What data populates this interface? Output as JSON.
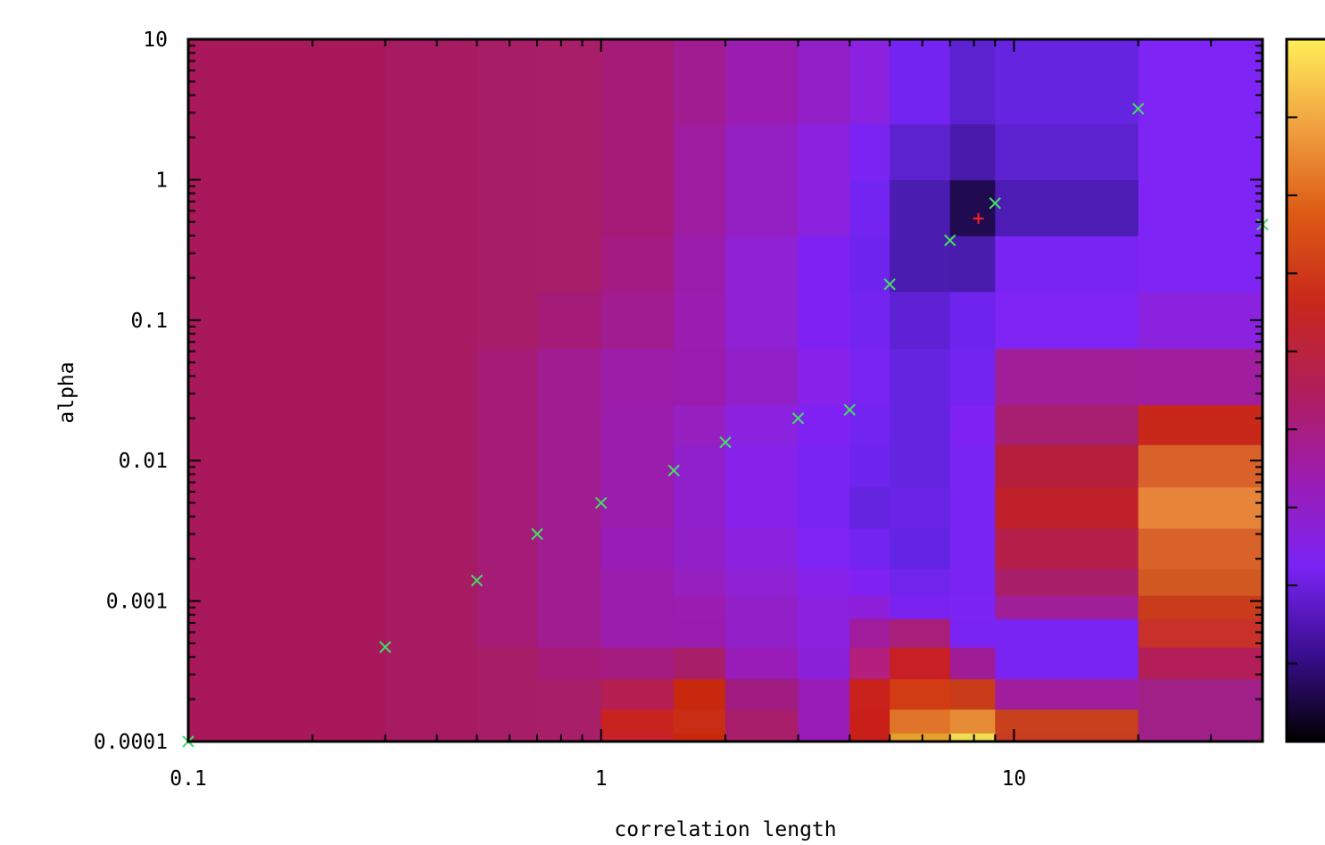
{
  "chart_data": {
    "type": "heatmap",
    "title": "",
    "xlabel": "correlation length",
    "ylabel": "alpha",
    "x_scale": "log",
    "y_scale": "log",
    "xlim": [
      0.1,
      40
    ],
    "ylim": [
      0.0001,
      10
    ],
    "x_tick_labels": [
      {
        "value": 0.1,
        "label": "0.1"
      },
      {
        "value": 1,
        "label": "1"
      },
      {
        "value": 10,
        "label": "10"
      }
    ],
    "y_tick_labels": [
      {
        "value": 10,
        "label": "10"
      },
      {
        "value": 1,
        "label": "1"
      },
      {
        "value": 0.1,
        "label": "0.1"
      },
      {
        "value": 0.01,
        "label": "0.01"
      },
      {
        "value": 0.001,
        "label": "0.001"
      },
      {
        "value": 0.0001,
        "label": "0.0001"
      }
    ],
    "x_edges": [
      0.1,
      0.3,
      0.5,
      0.7,
      1,
      1.5,
      2,
      3,
      4,
      5,
      7,
      9,
      20,
      40
    ],
    "y_edges": [
      0.0001,
      0.000115,
      0.00017,
      0.00028,
      0.00047,
      0.00075,
      0.0011,
      0.0017,
      0.0033,
      0.0065,
      0.013,
      0.025,
      0.063,
      0.16,
      0.4,
      1,
      2.5,
      10
    ],
    "z_colors": [
      [
        "#a8185a",
        "#a61b62",
        "#a71d66",
        "#a81e68",
        "#c8222c",
        "#c8280a",
        "#a81e6a",
        "#9a1cb8",
        "#c82018",
        "#e6a02c",
        "#f0dc50",
        "#c83c22",
        "#a02088"
      ],
      [
        "#a8185a",
        "#a61b62",
        "#a71d66",
        "#a81e68",
        "#c8231e",
        "#c82e14",
        "#a81e6a",
        "#9a1cb8",
        "#c82018",
        "#e07428",
        "#e68c34",
        "#c8401c",
        "#a02088"
      ],
      [
        "#a8185a",
        "#a61b62",
        "#a71d66",
        "#a81e68",
        "#b41e50",
        "#c8280e",
        "#a01c80",
        "#9a1cb8",
        "#c8201a",
        "#d23c14",
        "#c83c1a",
        "#a01e9e",
        "#a02088"
      ],
      [
        "#a8185a",
        "#a61b62",
        "#a71d66",
        "#a41c78",
        "#a41c80",
        "#a81e68",
        "#9a1cb8",
        "#8a20d8",
        "#b41e7c",
        "#c81e26",
        "#a01c96",
        "#7a24f4",
        "#b41e58"
      ],
      [
        "#a8185a",
        "#a61b62",
        "#a41c76",
        "#a01c90",
        "#9a1cac",
        "#9a1cae",
        "#9220c8",
        "#8a22e0",
        "#a01c9c",
        "#a81e78",
        "#7a24f4",
        "#7a24f4",
        "#c8302a"
      ],
      [
        "#a8185a",
        "#a61b62",
        "#a41c76",
        "#a01c90",
        "#9a1cac",
        "#9a1cb0",
        "#9220c8",
        "#8a22e0",
        "#8e20dc",
        "#7a22f0",
        "#7c24f4",
        "#a01e98",
        "#c83c1c"
      ],
      [
        "#a8185a",
        "#a61b62",
        "#a41c76",
        "#a01c90",
        "#9a1cac",
        "#9620c0",
        "#8e22d4",
        "#8622ea",
        "#8022f4",
        "#7024ec",
        "#7a24f4",
        "#a81e68",
        "#d25a22"
      ],
      [
        "#a8185a",
        "#a61b62",
        "#a41c76",
        "#a01c90",
        "#981cb8",
        "#9220c8",
        "#8a22e0",
        "#7e24f4",
        "#7424f0",
        "#6424e4",
        "#7a24f4",
        "#b41e48",
        "#d8622a"
      ],
      [
        "#a8185a",
        "#a61b62",
        "#a41c76",
        "#a01c90",
        "#9a1cac",
        "#9020cc",
        "#8622ea",
        "#7a24f4",
        "#6424e0",
        "#6a24e6",
        "#7a24f4",
        "#c0202a",
        "#e6843a"
      ],
      [
        "#a8185a",
        "#a61b62",
        "#a41c76",
        "#a01c90",
        "#9a1cac",
        "#9020cc",
        "#8622ea",
        "#7a24f4",
        "#6e24ec",
        "#6424e0",
        "#7a24f4",
        "#b41e3c",
        "#d8622a"
      ],
      [
        "#a8185a",
        "#a61b62",
        "#a41c76",
        "#a01c90",
        "#9a1cac",
        "#9620c0",
        "#8a22e0",
        "#8022f4",
        "#7424f0",
        "#6424e0",
        "#8022f4",
        "#a81e70",
        "#c8281a"
      ],
      [
        "#a8185a",
        "#a61b62",
        "#a41c76",
        "#a01c90",
        "#9c1ca8",
        "#9a1cae",
        "#9220c8",
        "#8622ea",
        "#7a24f4",
        "#6424e0",
        "#7424f0",
        "#a01e98",
        "#a01e9e"
      ],
      [
        "#a8185a",
        "#a61b62",
        "#a71d66",
        "#a41c78",
        "#a01c90",
        "#9a1cb0",
        "#8e22d4",
        "#8022f4",
        "#7424f0",
        "#5e22d4",
        "#6e24ec",
        "#7e24f4",
        "#8a22e0"
      ],
      [
        "#a8185a",
        "#a61b62",
        "#a71d66",
        "#a81e68",
        "#a41c82",
        "#9a1cac",
        "#8e22d4",
        "#8022f4",
        "#6e24ec",
        "#4a1cb0",
        "#4a1cae",
        "#7a24f4",
        "#7e24f4"
      ],
      [
        "#a8185a",
        "#a61b62",
        "#a71d66",
        "#a81e68",
        "#a41c78",
        "#9e1ca0",
        "#9420c4",
        "#8a22e0",
        "#7424f0",
        "#4a1cb0",
        "#200a50",
        "#4c1cb4",
        "#7e24f4"
      ],
      [
        "#a8185a",
        "#a61b62",
        "#a71d66",
        "#a81e68",
        "#a41c78",
        "#9e1ca0",
        "#9420c4",
        "#8a22e0",
        "#7c24f4",
        "#5c22d0",
        "#4a1aac",
        "#5c22d0",
        "#7e24f4"
      ],
      [
        "#a8185a",
        "#a61b62",
        "#a71d66",
        "#a81e68",
        "#a41c78",
        "#a01c90",
        "#9a1cb0",
        "#9220c8",
        "#8a22e0",
        "#7424f0",
        "#5c22d0",
        "#6424e0",
        "#7e24f4"
      ]
    ],
    "series": [
      {
        "marker": "x",
        "color": "#44dd66",
        "x": [
          0.1,
          0.3,
          0.5,
          0.7,
          1,
          1.5,
          2,
          3,
          4,
          5,
          7,
          9,
          20,
          40
        ],
        "y": [
          0.0001,
          0.00047,
          0.0014,
          0.003,
          0.005,
          0.0085,
          0.0135,
          0.02,
          0.023,
          0.18,
          0.37,
          0.68,
          3.2,
          0.48
        ]
      },
      {
        "marker": "+",
        "color": "#ff2222",
        "x": [
          8.2
        ],
        "y": [
          0.53
        ]
      }
    ],
    "colorbar": {
      "orientation": "vertical",
      "position": "right",
      "gradient": [
        "#000000",
        "#3a0e90",
        "#7a24f4",
        "#9c1cb0",
        "#b01e5a",
        "#c8281c",
        "#dc5a14",
        "#f0a040",
        "#ffee58"
      ],
      "tick_count": 9
    },
    "grid": false,
    "legend": "none"
  }
}
